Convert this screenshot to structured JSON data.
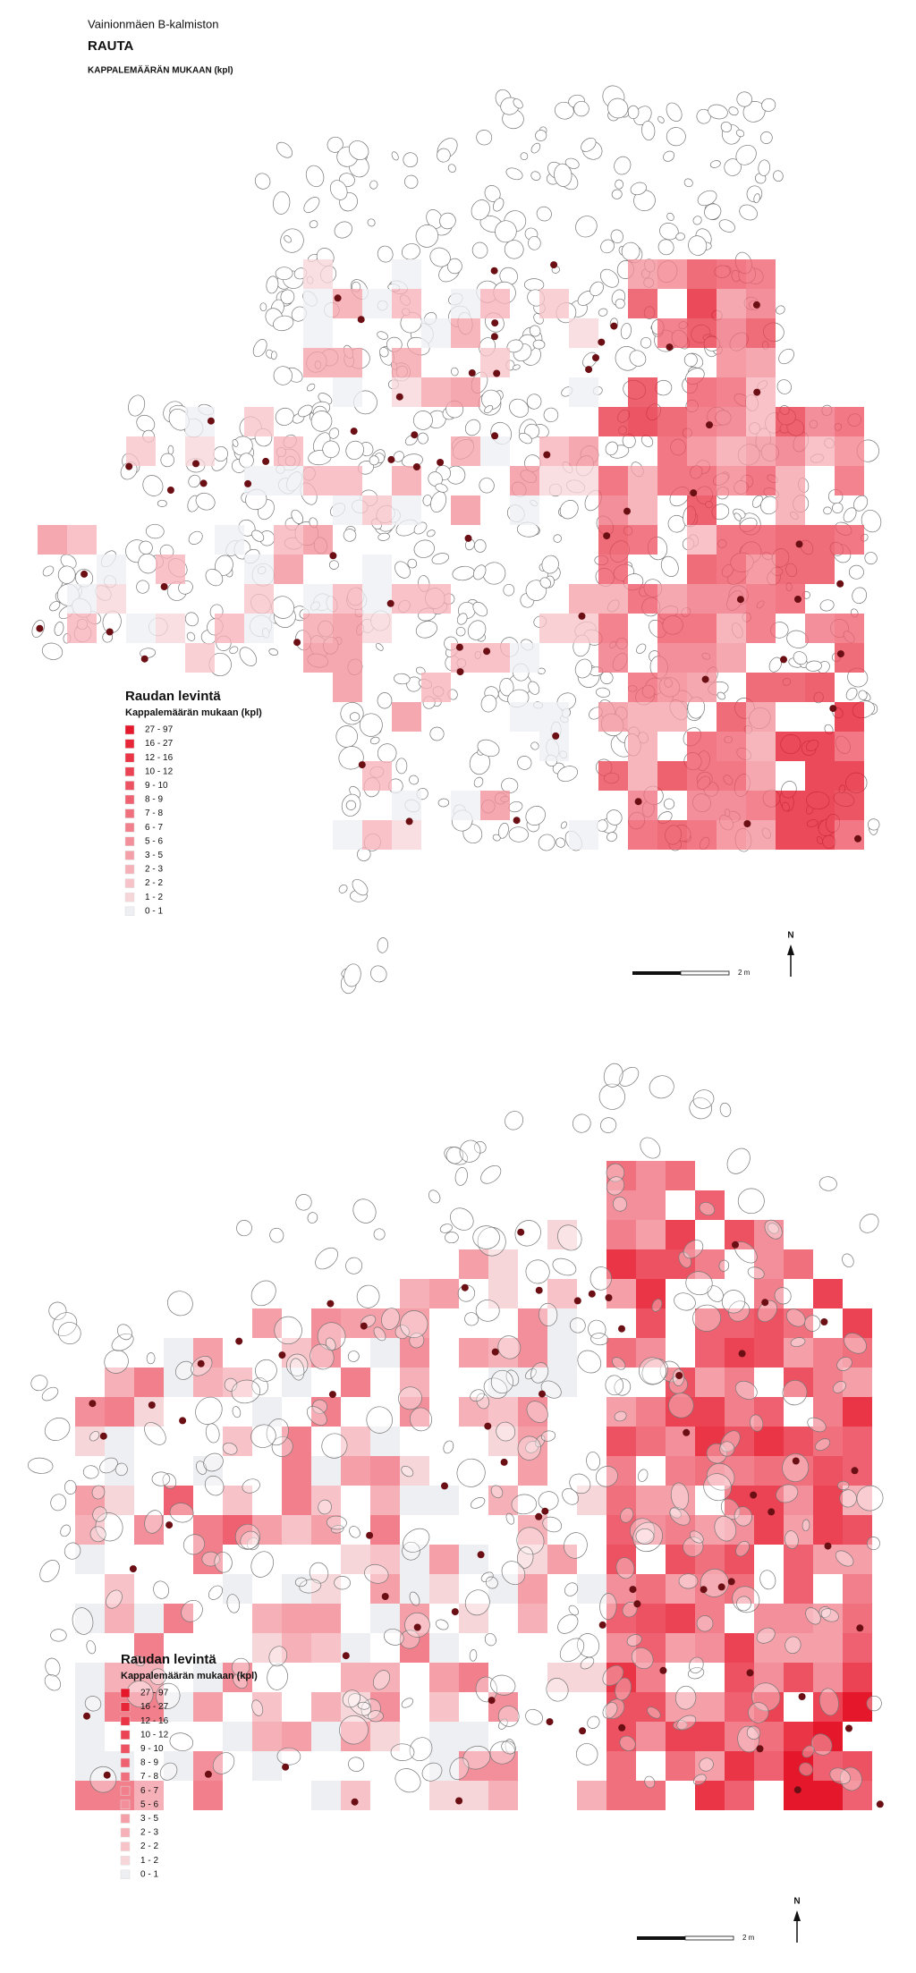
{
  "header": {
    "site": "Vainionmäen B-kalmiston",
    "title": "RAUTA",
    "subtitle": "KAPPALEMÄÄRÄN MUKAAN (kpl)"
  },
  "maps": [
    {
      "legend": {
        "title": "Raudan levintä",
        "subtitle": "Kappalemäärän mukaan (kpl)",
        "classes": [
          {
            "label": "27 - 97",
            "color": "#e4172b"
          },
          {
            "label": "16 - 27",
            "color": "#e72638"
          },
          {
            "label": "12 - 16",
            "color": "#e93545"
          },
          {
            "label": "10 - 12",
            "color": "#eb4353"
          },
          {
            "label": "9 - 10",
            "color": "#ed5262"
          },
          {
            "label": "8 - 9",
            "color": "#ef6170"
          },
          {
            "label": "7 - 8",
            "color": "#f0707e"
          },
          {
            "label": "6 - 7",
            "color": "#f2808c"
          },
          {
            "label": "5 - 6",
            "color": "#f38f9a"
          },
          {
            "label": "3 - 5",
            "color": "#f5a0a9"
          },
          {
            "label": "2 - 3",
            "color": "#f6b1b8"
          },
          {
            "label": "2 - 2",
            "color": "#f7c3c8"
          },
          {
            "label": "1 - 2",
            "color": "#f7d6d9"
          },
          {
            "label": "0 - 1",
            "color": "#eeeff3"
          }
        ]
      },
      "north": "N",
      "scale": "2 m"
    },
    {
      "legend": {
        "title": "Raudan levintä",
        "subtitle": "Kappalemäärän mukaan (kpl)",
        "classes": [
          {
            "label": "27 - 97",
            "color": "#e4172b"
          },
          {
            "label": "16 - 27",
            "color": "#e72638"
          },
          {
            "label": "12 - 16",
            "color": "#e93545"
          },
          {
            "label": "10 - 12",
            "color": "#eb4353"
          },
          {
            "label": "9 - 10",
            "color": "#ed5262"
          },
          {
            "label": "8 - 9",
            "color": "#ef6170"
          },
          {
            "label": "7 - 8",
            "color": "#f0707e"
          },
          {
            "label": "6 - 7",
            "color": "#f2808c"
          },
          {
            "label": "5 - 6",
            "color": "#f38f9a"
          },
          {
            "label": "3 - 5",
            "color": "#f5a0a9"
          },
          {
            "label": "2 - 3",
            "color": "#f6b1b8"
          },
          {
            "label": "2 - 2",
            "color": "#f7c3c8"
          },
          {
            "label": "1 - 2",
            "color": "#f7d6d9"
          },
          {
            "label": "0 - 1",
            "color": "#eeeff3"
          }
        ]
      },
      "north": "N",
      "scale": "2 m"
    }
  ]
}
